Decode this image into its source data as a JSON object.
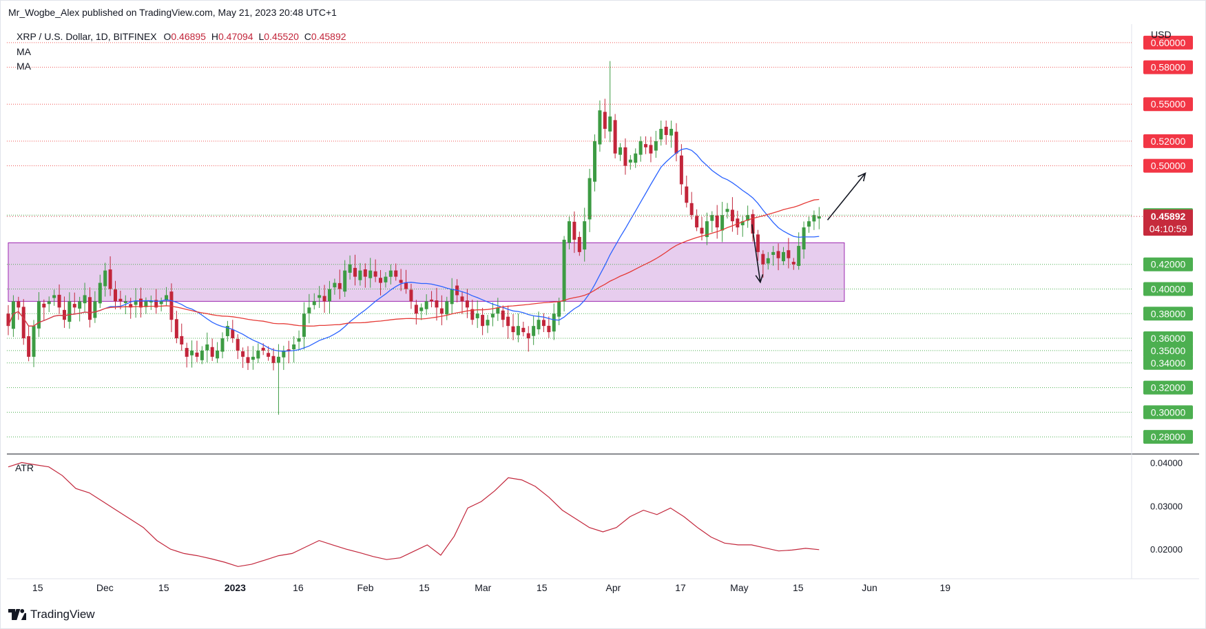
{
  "header": {
    "published_by": "Mr_Wogbe_Alex published on TradingView.com, May 21, 2023 20:48 UTC+1"
  },
  "legend": {
    "symbol": "XRP / U.S. Dollar, 1D, BITFINEX",
    "open_label": "O",
    "open": "0.46895",
    "high_label": "H",
    "high": "0.47094",
    "low_label": "L",
    "low": "0.45520",
    "close_label": "C",
    "close": "0.45892",
    "indicator_1": "MA",
    "indicator_2": "MA"
  },
  "atr_label": "ATR",
  "currency": "USD",
  "brand": "TradingView",
  "colors": {
    "up": "#3d9b43",
    "down": "#c2253a",
    "ma_fast": "#2962ff",
    "ma_slow": "#e53935",
    "zone_fill": "#e7cdee",
    "zone_border": "#9c27b0",
    "atr": "#c2253a",
    "res_line": "#ef5350",
    "sup_line": "#4caf50",
    "res_badge": "#f23645",
    "sup_badge": "#4caf50",
    "last_price_badge": "#c62a3c"
  },
  "chart_data": [
    {
      "type": "candlestick",
      "symbol": "XRP / U.S. Dollar",
      "interval": "1D",
      "exchange": "BITFINEX",
      "ylim": [
        0.27,
        0.615
      ],
      "price_axis_unit": "USD",
      "x_tick_labels": [
        {
          "label": "15",
          "date": "2022-11-15"
        },
        {
          "label": "Dec",
          "date": "2022-12-01"
        },
        {
          "label": "15",
          "date": "2022-12-15"
        },
        {
          "label": "2023",
          "date": "2023-01-01",
          "bold": true
        },
        {
          "label": "16",
          "date": "2023-01-16"
        },
        {
          "label": "Feb",
          "date": "2023-02-01"
        },
        {
          "label": "15",
          "date": "2023-02-15"
        },
        {
          "label": "Mar",
          "date": "2023-03-01"
        },
        {
          "label": "15",
          "date": "2023-03-15"
        },
        {
          "label": "Apr",
          "date": "2023-04-01"
        },
        {
          "label": "17",
          "date": "2023-04-17"
        },
        {
          "label": "May",
          "date": "2023-05-01"
        },
        {
          "label": "15",
          "date": "2023-05-15"
        },
        {
          "label": "Jun",
          "date": "2023-06-01"
        },
        {
          "label": "19",
          "date": "2023-06-19"
        }
      ],
      "resistance_levels": [
        {
          "price": 0.6,
          "label": "0.60000"
        },
        {
          "price": 0.58,
          "label": "0.58000"
        },
        {
          "price": 0.55,
          "label": "0.55000"
        },
        {
          "price": 0.52,
          "label": "0.52000"
        },
        {
          "price": 0.5,
          "label": "0.50000"
        }
      ],
      "support_levels": [
        {
          "price": 0.46,
          "label": "0.46000"
        },
        {
          "price": 0.42,
          "label": "0.42000"
        },
        {
          "price": 0.4,
          "label": "0.40000"
        },
        {
          "price": 0.38,
          "label": "0.38000"
        },
        {
          "price": 0.36,
          "label": "0.36000"
        },
        {
          "price": 0.35,
          "label": "0.35000"
        },
        {
          "price": 0.34,
          "label": "0.34000"
        },
        {
          "price": 0.32,
          "label": "0.32000"
        },
        {
          "price": 0.3,
          "label": "0.30000"
        },
        {
          "price": 0.28,
          "label": "0.28000"
        }
      ],
      "last_price": {
        "price": 0.45892,
        "label": "0.45892",
        "countdown": "04:10:59"
      },
      "zone": {
        "y_low": 0.39,
        "y_high": 0.4375,
        "x_start": "2022-11-08",
        "x_end": "2023-05-26"
      },
      "annotations": [
        {
          "type": "arrow",
          "from": [
            "2023-05-04",
            0.4525
          ],
          "to": [
            "2023-05-06",
            0.4055
          ]
        },
        {
          "type": "arrow",
          "from": [
            "2023-05-22",
            0.456
          ],
          "to": [
            "2023-05-31",
            0.494
          ]
        }
      ],
      "candles_anchors": {
        "start_date": "2022-11-08",
        "closes": [
          0.37,
          0.39,
          0.385,
          0.36,
          0.345,
          0.37,
          0.39,
          0.385,
          0.39,
          0.395,
          0.385,
          0.375,
          0.39,
          0.385,
          0.39,
          0.395,
          0.375,
          0.39,
          0.405,
          0.415,
          0.4,
          0.39,
          0.39,
          0.39,
          0.385,
          0.39,
          0.385,
          0.39,
          0.39,
          0.385,
          0.39,
          0.395,
          0.375,
          0.36,
          0.355,
          0.345,
          0.35,
          0.345,
          0.35,
          0.355,
          0.345,
          0.35,
          0.36,
          0.37,
          0.36,
          0.35,
          0.345,
          0.34,
          0.345,
          0.35,
          0.35,
          0.345,
          0.34,
          0.345,
          0.35,
          0.35,
          0.355,
          0.36,
          0.38,
          0.385,
          0.39,
          0.395,
          0.39,
          0.4,
          0.405,
          0.4,
          0.415,
          0.42,
          0.41,
          0.415,
          0.41,
          0.415,
          0.41,
          0.405,
          0.41,
          0.415,
          0.41,
          0.405,
          0.4,
          0.39,
          0.38,
          0.385,
          0.39,
          0.39,
          0.385,
          0.38,
          0.39,
          0.4,
          0.395,
          0.39,
          0.385,
          0.375,
          0.38,
          0.37,
          0.375,
          0.38,
          0.385,
          0.375,
          0.37,
          0.365,
          0.37,
          0.365,
          0.36,
          0.37,
          0.375,
          0.37,
          0.365,
          0.38,
          0.39,
          0.44,
          0.455,
          0.44,
          0.43,
          0.455,
          0.49,
          0.52,
          0.545,
          0.53,
          0.54,
          0.51,
          0.515,
          0.5,
          0.505,
          0.51,
          0.52,
          0.515,
          0.51,
          0.52,
          0.53,
          0.525,
          0.53,
          0.51,
          0.485,
          0.47,
          0.46,
          0.45,
          0.445,
          0.455,
          0.46,
          0.45,
          0.46,
          0.465,
          0.455,
          0.45,
          0.455,
          0.46,
          0.445,
          0.43,
          0.42,
          0.425,
          0.43,
          0.425,
          0.43,
          0.425,
          0.42,
          0.435,
          0.45,
          0.455,
          0.46,
          0.459
        ]
      }
    },
    {
      "type": "line",
      "name": "ATR",
      "ylim": [
        0.0135,
        0.0415
      ],
      "y_tick_labels": [
        "0.04000",
        "0.03000",
        "0.02000"
      ],
      "y_ticks": [
        0.04,
        0.03,
        0.02
      ],
      "approx_values_start_to_end": [
        0.039,
        0.04,
        0.0395,
        0.039,
        0.037,
        0.034,
        0.033,
        0.031,
        0.029,
        0.027,
        0.025,
        0.022,
        0.02,
        0.019,
        0.0185,
        0.0178,
        0.017,
        0.016,
        0.0165,
        0.0175,
        0.0185,
        0.019,
        0.0205,
        0.022,
        0.021,
        0.02,
        0.0192,
        0.0183,
        0.0176,
        0.018,
        0.0195,
        0.021,
        0.0186,
        0.023,
        0.0295,
        0.031,
        0.0335,
        0.0365,
        0.036,
        0.0345,
        0.032,
        0.029,
        0.027,
        0.025,
        0.024,
        0.025,
        0.0275,
        0.029,
        0.028,
        0.0295,
        0.0275,
        0.025,
        0.0228,
        0.0214,
        0.021,
        0.021,
        0.0203,
        0.0196,
        0.0198,
        0.0202,
        0.0199
      ]
    }
  ]
}
